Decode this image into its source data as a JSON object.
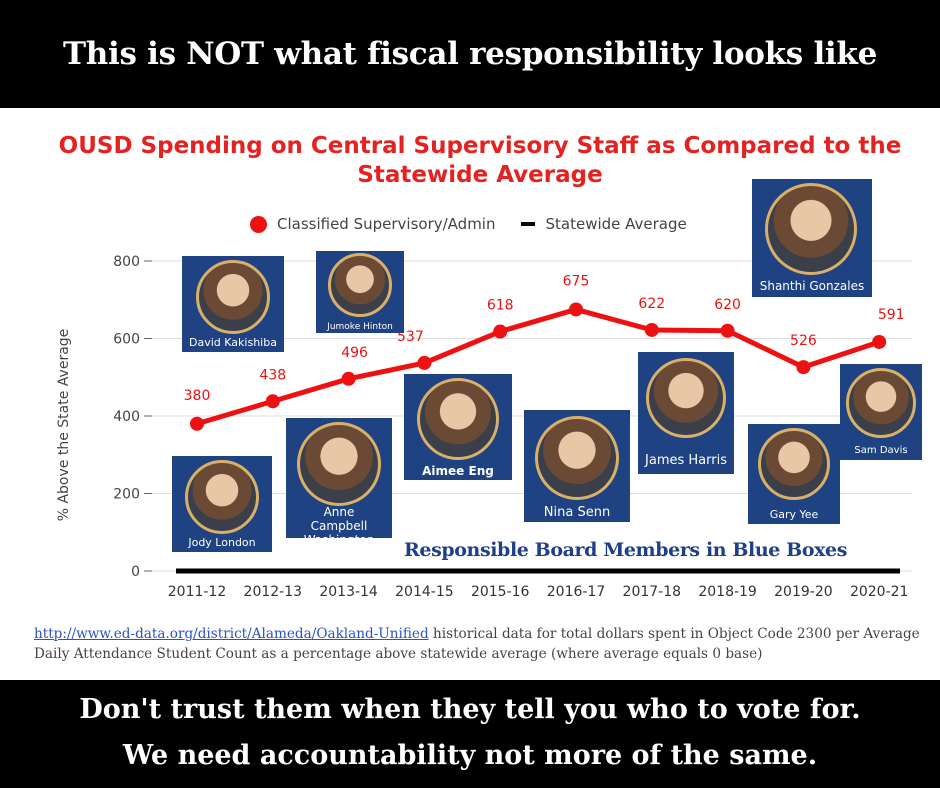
{
  "headline": "This is NOT what fiscal responsibility looks like",
  "footer": {
    "line1": "Don't trust them when they tell you who to vote for.",
    "line2": "We need accountability not more of the same."
  },
  "chart_data": {
    "type": "line",
    "title": "OUSD Spending on Central Supervisory Staff as Compared to the Statewide Average",
    "ylabel": "% Above the State Average",
    "xlabel": "",
    "ylim": [
      0,
      800
    ],
    "yticks": [
      0,
      200,
      400,
      600,
      800
    ],
    "grid": true,
    "legend_position": "top",
    "categories": [
      "2011-12",
      "2012-13",
      "2013-14",
      "2014-15",
      "2015-16",
      "2016-17",
      "2017-18",
      "2018-19",
      "2019-20",
      "2020-21"
    ],
    "series": [
      {
        "name": "Classified Supervisory/Admin",
        "color": "#ee1111",
        "values": [
          380,
          438,
          496,
          537,
          618,
          675,
          622,
          620,
          526,
          591
        ]
      },
      {
        "name": "Statewide Average",
        "color": "#000000",
        "values": [
          0,
          0,
          0,
          0,
          0,
          0,
          0,
          0,
          0,
          0
        ]
      }
    ]
  },
  "board_members": [
    {
      "name": "David Kakishiba",
      "responsible": true
    },
    {
      "name": "Jumoke Hinton",
      "responsible": true
    },
    {
      "name": "Jody London",
      "responsible": true
    },
    {
      "name": "Anne Campbell Washington",
      "responsible": true
    },
    {
      "name": "Aimee Eng",
      "responsible": true
    },
    {
      "name": "Nina Senn",
      "responsible": true
    },
    {
      "name": "James Harris",
      "responsible": true
    },
    {
      "name": "Gary Yee",
      "responsible": true
    },
    {
      "name": "Shanthi Gonzales",
      "responsible": true
    },
    {
      "name": "Sam Davis",
      "responsible": true
    }
  ],
  "annotation": "Responsible Board Members in Blue Boxes",
  "source": {
    "link": "http://www.ed-data.org/district/Alameda/Oakland-Unified",
    "text": " historical data for total dollars spent in Object Code 2300 per Average Daily Attendance Student Count as a percentage above statewide average (where average equals 0 base)"
  }
}
